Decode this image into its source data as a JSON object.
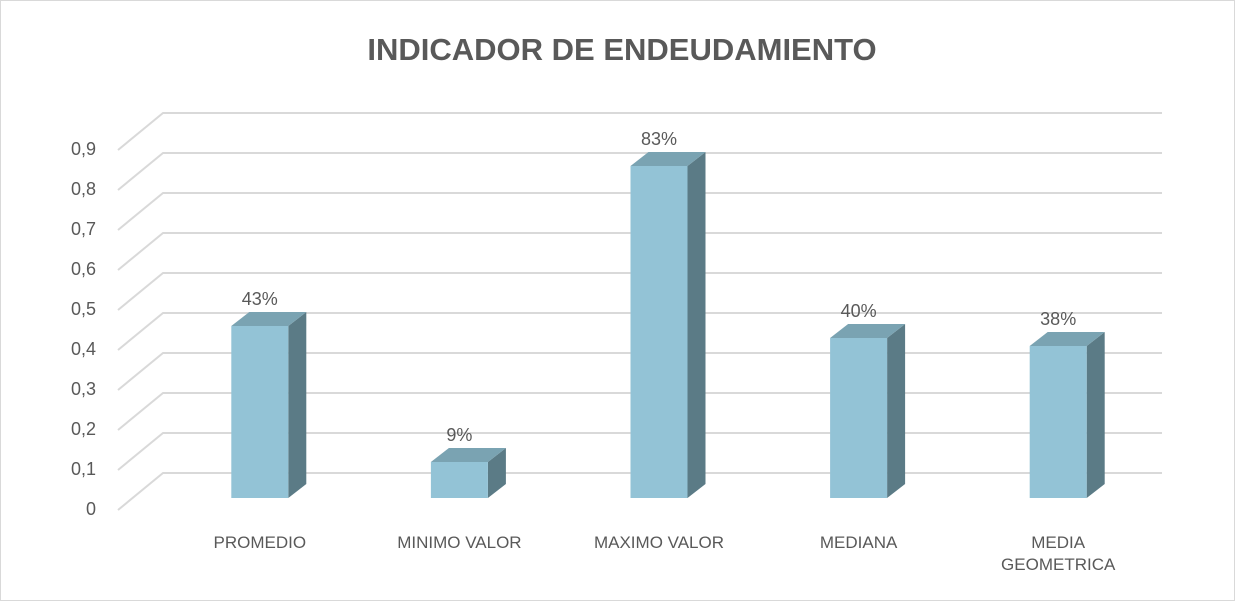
{
  "chart_data": {
    "type": "bar3d",
    "title": "INDICADOR DE ENDEUDAMIENTO",
    "categories": [
      "PROMEDIO",
      "MINIMO VALOR",
      "MAXIMO VALOR",
      "MEDIANA",
      "MEDIA GEOMETRICA"
    ],
    "values": [
      0.43,
      0.09,
      0.83,
      0.4,
      0.38
    ],
    "value_labels": [
      "43%",
      "9%",
      "83%",
      "40%",
      "38%"
    ],
    "color": "#93c3d6",
    "ylim": [
      0,
      0.9
    ],
    "yticks": [
      0,
      {
        "value": 0.1,
        "label": "0,1"
      },
      {
        "value": 0.2,
        "label": "0,2"
      },
      {
        "value": 0.3,
        "label": "0,3"
      },
      {
        "value": 0.4,
        "label": "0,4"
      },
      {
        "value": 0.5,
        "label": "0,5"
      },
      {
        "value": 0.6,
        "label": "0,6"
      },
      {
        "value": 0.7,
        "label": "0,7"
      },
      {
        "value": 0.8,
        "label": "0,8"
      },
      {
        "value": 0.9,
        "label": "0,9"
      }
    ],
    "grid": true
  }
}
